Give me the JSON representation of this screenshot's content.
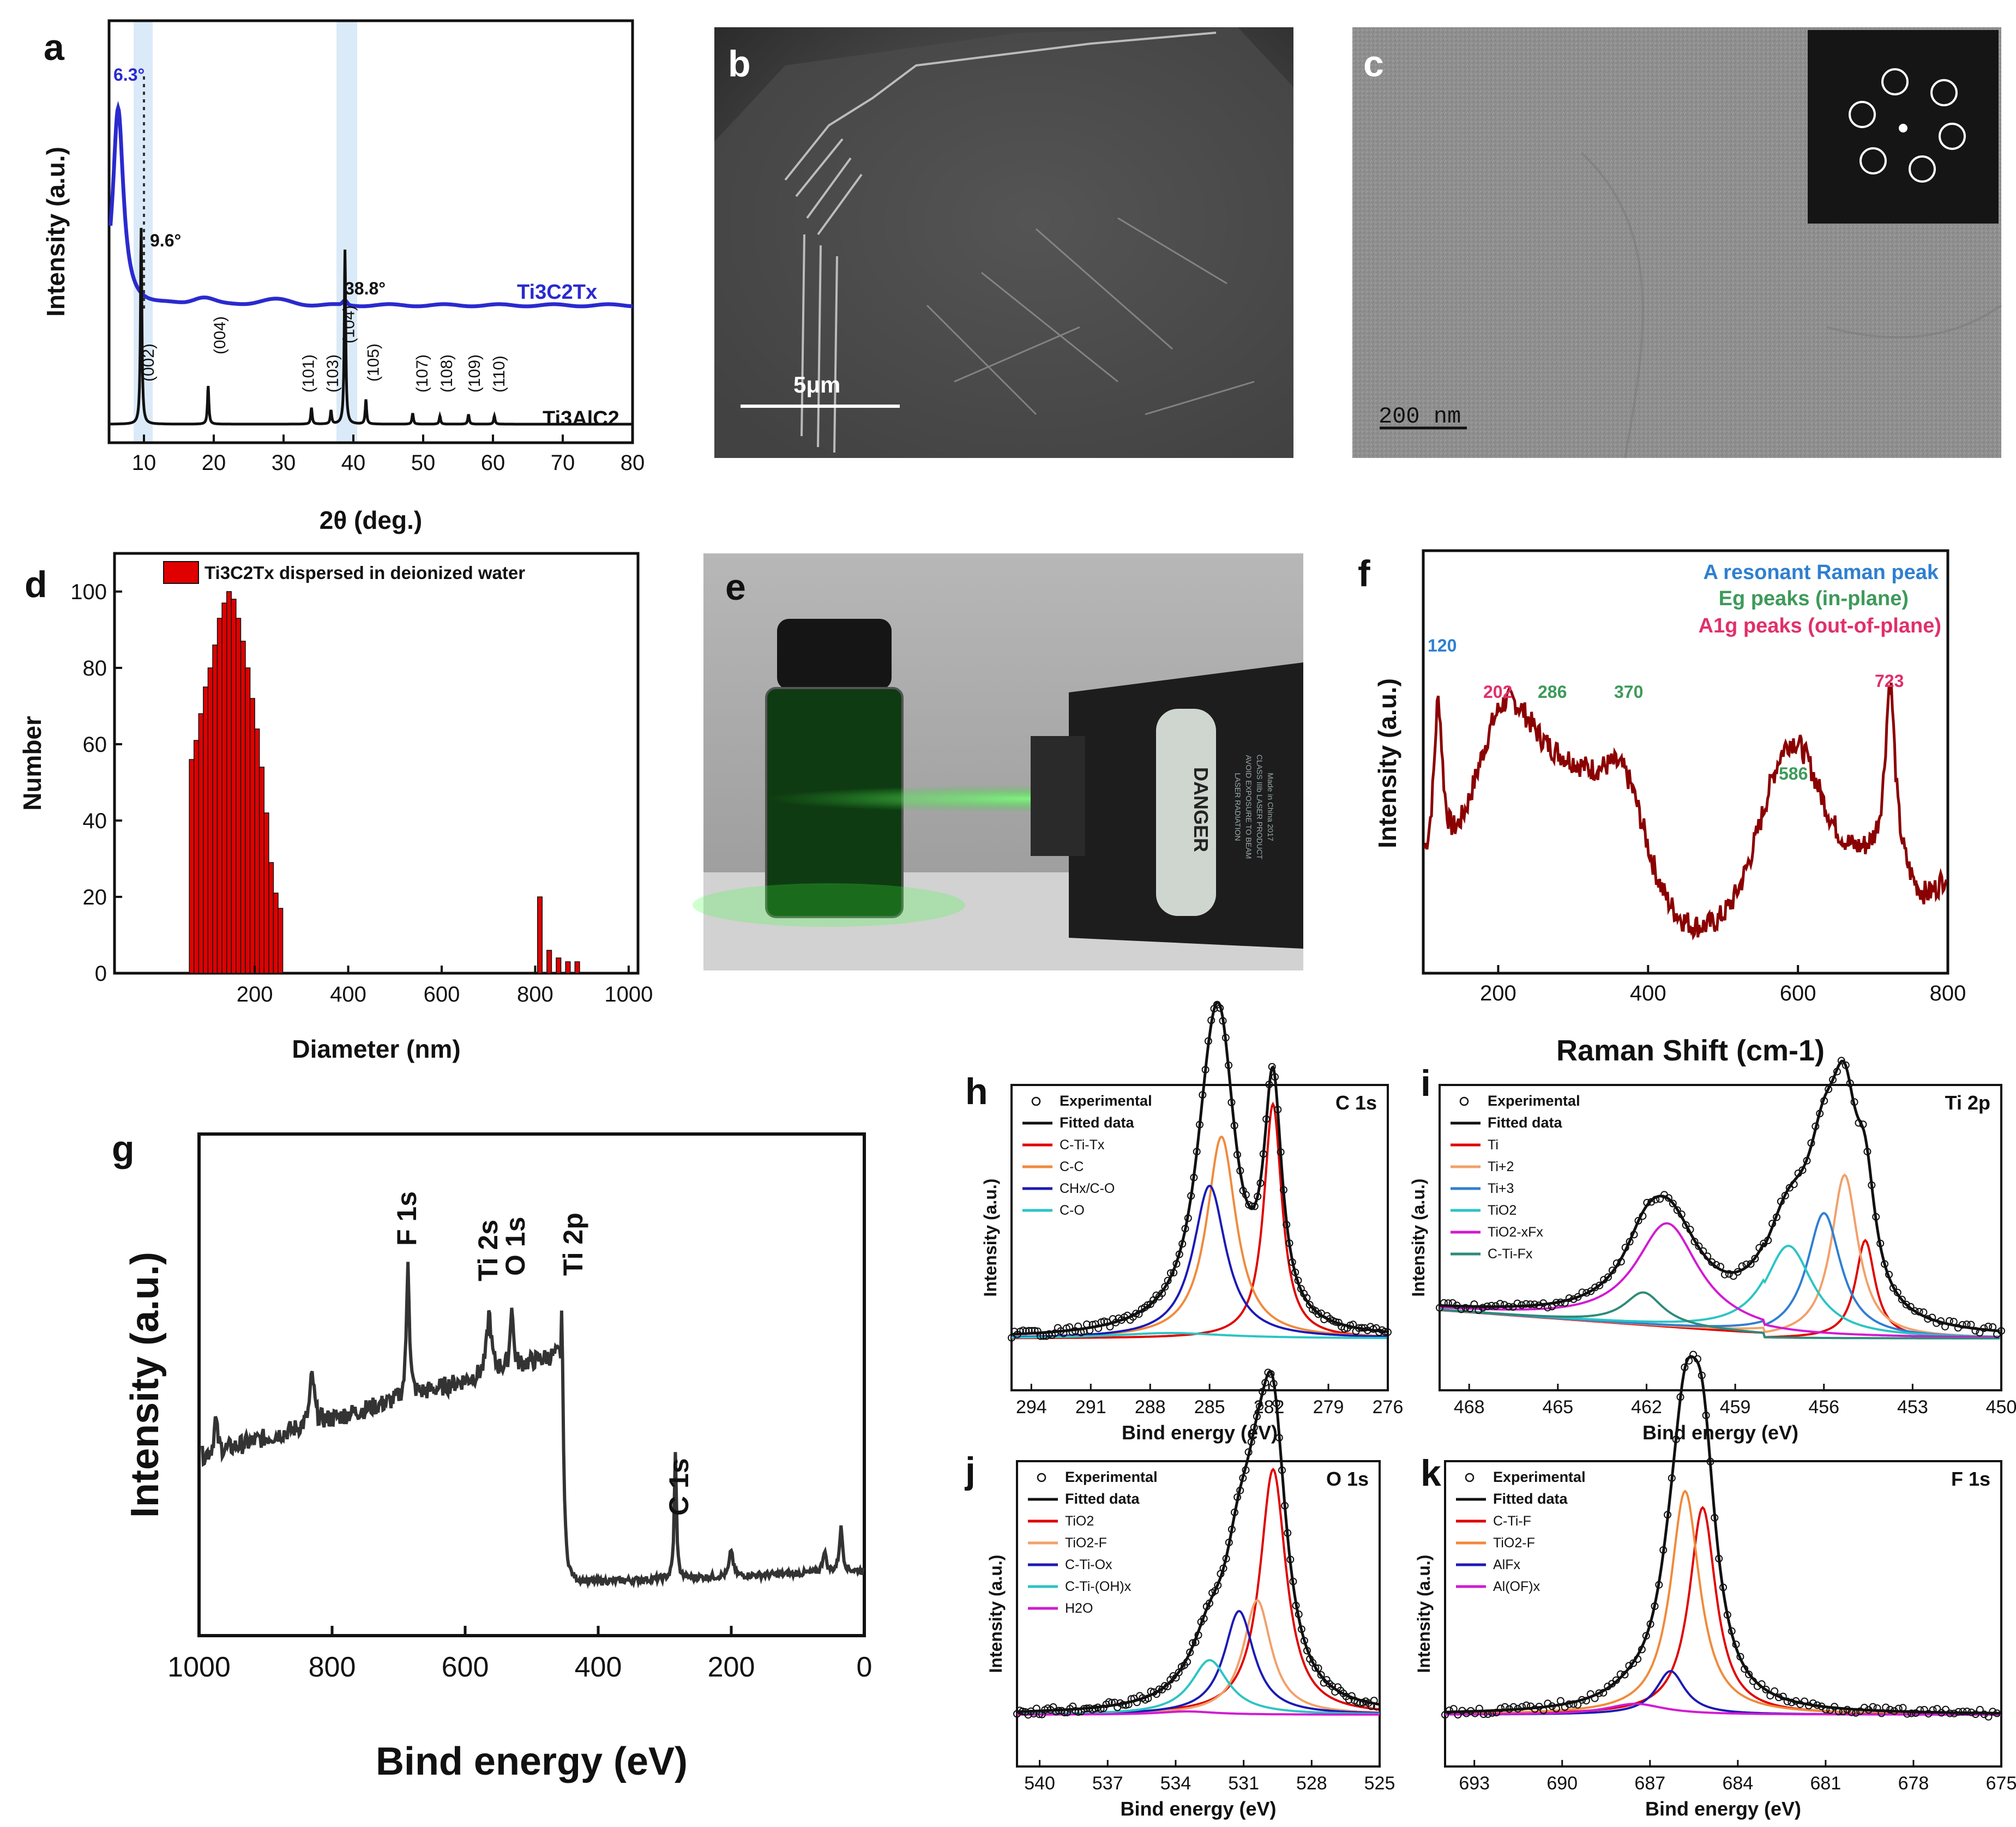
{
  "panels": {
    "a": {
      "label": "a",
      "xlabel": "2θ (deg.)",
      "ylabel": "Intensity (a.u.)",
      "xticks": [
        "10",
        "20",
        "30",
        "40",
        "50",
        "60",
        "70",
        "80"
      ],
      "peak_low": "6.3°",
      "peak_mid": "9.6°",
      "peak_high": "38.8°",
      "mxene": "Ti3C2Tx",
      "max": "Ti3AlC2",
      "hkl": [
        "(002)",
        "(004)",
        "(101)",
        "(103)",
        "(104)",
        "(105)",
        "(107)",
        "(108)",
        "(109)",
        "(110)"
      ]
    },
    "b": {
      "label": "b",
      "scale": "5μm"
    },
    "c": {
      "label": "c",
      "scale": "200 nm"
    },
    "d": {
      "label": "d",
      "xlabel": "Diameter (nm)",
      "ylabel": "Number",
      "legend": "Ti3C2Tx dispersed in deionized water",
      "xticks": [
        "200",
        "400",
        "600",
        "800",
        "1000"
      ],
      "yticks": [
        "0",
        "20",
        "40",
        "60",
        "80",
        "100"
      ]
    },
    "e": {
      "label": "e",
      "laser": [
        "DANGER",
        "LASER RADIATION",
        "AVOID EXPOSURE TO BEAM",
        "CLASS IIIb LASER PRODUCT",
        "Made in China 2017"
      ]
    },
    "f": {
      "label": "f",
      "xlabel": "Raman Shift (cm-1)",
      "ylabel": "Intensity (a.u.)",
      "xticks": [
        "200",
        "400",
        "600",
        "800"
      ],
      "legend": [
        "A resonant Raman peak",
        "Eg peaks (in-plane)",
        "A1g peaks (out-of-plane)"
      ],
      "peaks": [
        "120",
        "202",
        "286",
        "370",
        "586",
        "723"
      ]
    },
    "g": {
      "label": "g",
      "xlabel": "Bind energy (eV)",
      "ylabel": "Intensity (a.u.)",
      "xticks": [
        "1000",
        "800",
        "600",
        "400",
        "200",
        "0"
      ],
      "peaks": [
        "F 1s",
        "Ti 2s",
        "O 1s",
        "Ti 2p",
        "C 1s"
      ]
    },
    "h": {
      "label": "h",
      "title": "C 1s",
      "xlabel": "Bind energy (eV)",
      "ylabel": "Intensity (a.u.)",
      "xticks": [
        "294",
        "291",
        "288",
        "285",
        "282",
        "279",
        "276"
      ],
      "legend": [
        "Experimental",
        "Fitted data",
        "C-Ti-Tx",
        "C-C",
        "CHx/C-O",
        "C-O"
      ]
    },
    "i": {
      "label": "i",
      "title": "Ti 2p",
      "xlabel": "Bind energy (eV)",
      "ylabel": "Intensity (a.u.)",
      "xticks": [
        "468",
        "465",
        "462",
        "459",
        "456",
        "453",
        "450"
      ],
      "legend": [
        "Experimental",
        "Fitted data",
        "Ti",
        "Ti+2",
        "Ti+3",
        "TiO2",
        "TiO2-xFx",
        "C-Ti-Fx"
      ]
    },
    "j": {
      "label": "j",
      "title": "O 1s",
      "xlabel": "Bind energy (eV)",
      "ylabel": "Intensity (a.u.)",
      "xticks": [
        "540",
        "537",
        "534",
        "531",
        "528",
        "525"
      ],
      "legend": [
        "Experimental",
        "Fitted data",
        "TiO2",
        "TiO2-F",
        "C-Ti-Ox",
        "C-Ti-(OH)x",
        "H2O"
      ]
    },
    "k": {
      "label": "k",
      "title": "F 1s",
      "xlabel": "Bind energy (eV)",
      "ylabel": "Intensity (a.u.)",
      "xticks": [
        "693",
        "690",
        "687",
        "684",
        "681",
        "678",
        "675"
      ],
      "legend": [
        "Experimental",
        "Fitted data",
        "C-Ti-F",
        "TiO2-F",
        "AlFx",
        "Al(OF)x"
      ]
    }
  },
  "colors": {
    "blue": "#2a2acf",
    "black": "#111111",
    "red": "#e00000",
    "darkred": "#8b0000",
    "orange": "#f08a3c",
    "navy": "#1b1bb5",
    "cyan": "#2cc4c4",
    "magenta": "#d21ad2",
    "teal": "#2e8b7a",
    "skyblue": "#2f7fd0",
    "green": "#3d9a5a",
    "pink": "#e0306a",
    "sand": "#f2a06a"
  },
  "chart_data": [
    {
      "panel": "a",
      "type": "line",
      "title": "",
      "xlabel": "2θ (deg.)",
      "ylabel": "Intensity (a.u.)",
      "xlim": [
        5,
        80
      ],
      "series": [
        {
          "name": "Ti3C2Tx",
          "peaks_at": [
            6.3,
            18.5,
            28.5,
            38.8
          ]
        },
        {
          "name": "Ti3AlC2",
          "peaks_at": [
            9.6,
            19.2,
            34,
            36.8,
            38.8,
            41.8,
            48.5,
            52.4,
            56.5,
            60.2
          ]
        }
      ]
    },
    {
      "panel": "d",
      "type": "bar",
      "title": "",
      "xlabel": "Diameter (nm)",
      "ylabel": "Number",
      "ylim": [
        0,
        110
      ],
      "bars": [
        {
          "x": 65,
          "y": 56
        },
        {
          "x": 75,
          "y": 61
        },
        {
          "x": 85,
          "y": 68
        },
        {
          "x": 95,
          "y": 75
        },
        {
          "x": 105,
          "y": 80
        },
        {
          "x": 115,
          "y": 86
        },
        {
          "x": 125,
          "y": 93
        },
        {
          "x": 135,
          "y": 97
        },
        {
          "x": 145,
          "y": 100
        },
        {
          "x": 155,
          "y": 98
        },
        {
          "x": 165,
          "y": 93
        },
        {
          "x": 175,
          "y": 87
        },
        {
          "x": 185,
          "y": 80
        },
        {
          "x": 195,
          "y": 72
        },
        {
          "x": 205,
          "y": 64
        },
        {
          "x": 215,
          "y": 54
        },
        {
          "x": 225,
          "y": 42
        },
        {
          "x": 235,
          "y": 29
        },
        {
          "x": 245,
          "y": 21
        },
        {
          "x": 255,
          "y": 17
        },
        {
          "x": 810,
          "y": 20
        },
        {
          "x": 830,
          "y": 6
        },
        {
          "x": 850,
          "y": 4
        },
        {
          "x": 870,
          "y": 3
        },
        {
          "x": 890,
          "y": 3
        }
      ]
    },
    {
      "panel": "f",
      "type": "line",
      "title": "",
      "xlabel": "Raman Shift (cm-1)",
      "ylabel": "Intensity (a.u.)",
      "xlim": [
        100,
        800
      ],
      "peaks_at": [
        120,
        202,
        286,
        370,
        586,
        723
      ]
    },
    {
      "panel": "g",
      "type": "line",
      "title": "",
      "xlabel": "Bind energy (eV)",
      "ylabel": "Intensity (a.u.)",
      "xlim": [
        1000,
        0
      ],
      "peaks_at": [
        686,
        564,
        530,
        455,
        284
      ]
    },
    {
      "panel": "h",
      "type": "line",
      "title": "C 1s",
      "xlim": [
        295,
        276
      ],
      "components": [
        {
          "name": "C-Ti-Tx",
          "center": 281.8
        },
        {
          "name": "C-C",
          "center": 284.5
        },
        {
          "name": "CHx/C-O",
          "center": 285.2
        },
        {
          "name": "C-O",
          "center": 287
        }
      ]
    },
    {
      "panel": "i",
      "type": "line",
      "title": "Ti 2p",
      "xlim": [
        469,
        450
      ],
      "components": [
        {
          "name": "Ti",
          "center": 454.6
        },
        {
          "name": "Ti+2",
          "center": 455.3
        },
        {
          "name": "Ti+3",
          "center": 456
        },
        {
          "name": "TiO2",
          "center": 457.5
        },
        {
          "name": "TiO2-xFx",
          "center": 461.3
        },
        {
          "name": "C-Ti-Fx",
          "center": 462
        }
      ]
    },
    {
      "panel": "j",
      "type": "line",
      "title": "O 1s",
      "xlim": [
        541,
        525
      ],
      "components": [
        {
          "name": "TiO2",
          "center": 529.8
        },
        {
          "name": "TiO2-F",
          "center": 530.4
        },
        {
          "name": "C-Ti-Ox",
          "center": 531.3
        },
        {
          "name": "C-Ti-(OH)x",
          "center": 532.5
        },
        {
          "name": "H2O",
          "center": 533.5
        }
      ]
    },
    {
      "panel": "k",
      "type": "line",
      "title": "F 1s",
      "xlim": [
        694,
        675
      ],
      "components": [
        {
          "name": "C-Ti-F",
          "center": 685.3
        },
        {
          "name": "TiO2-F",
          "center": 685.8
        },
        {
          "name": "AlFx",
          "center": 686.3
        },
        {
          "name": "Al(OF)x",
          "center": 687.5
        }
      ]
    }
  ]
}
